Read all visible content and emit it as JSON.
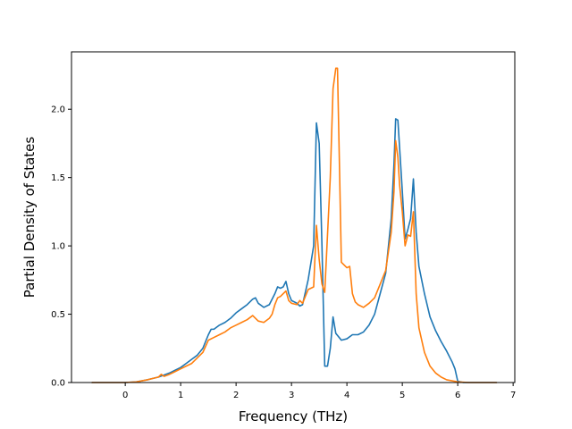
{
  "chart_data": {
    "type": "line",
    "xlabel": "Frequency (THz)",
    "ylabel": "Partial Density of States",
    "xlim": [
      -0.97,
      7.03
    ],
    "ylim": [
      0.0,
      2.42
    ],
    "x_ticks": [
      0,
      1,
      2,
      3,
      4,
      5,
      6,
      7
    ],
    "y_ticks": [
      0.0,
      0.5,
      1.0,
      1.5,
      2.0
    ],
    "grid": false,
    "legend": "none",
    "series": [
      {
        "color": "#1f77b4",
        "points": [
          [
            -0.6,
            0
          ],
          [
            0,
            0
          ],
          [
            0.2,
            0.005
          ],
          [
            0.4,
            0.02
          ],
          [
            0.5,
            0.03
          ],
          [
            0.6,
            0.04
          ],
          [
            0.7,
            0.055
          ],
          [
            0.8,
            0.07
          ],
          [
            0.9,
            0.09
          ],
          [
            1.0,
            0.11
          ],
          [
            1.1,
            0.14
          ],
          [
            1.2,
            0.17
          ],
          [
            1.3,
            0.2
          ],
          [
            1.4,
            0.25
          ],
          [
            1.5,
            0.35
          ],
          [
            1.55,
            0.39
          ],
          [
            1.6,
            0.39
          ],
          [
            1.7,
            0.42
          ],
          [
            1.8,
            0.44
          ],
          [
            1.9,
            0.47
          ],
          [
            2.0,
            0.51
          ],
          [
            2.1,
            0.54
          ],
          [
            2.2,
            0.57
          ],
          [
            2.3,
            0.61
          ],
          [
            2.35,
            0.62
          ],
          [
            2.4,
            0.58
          ],
          [
            2.5,
            0.55
          ],
          [
            2.6,
            0.57
          ],
          [
            2.7,
            0.65
          ],
          [
            2.75,
            0.7
          ],
          [
            2.8,
            0.69
          ],
          [
            2.85,
            0.7
          ],
          [
            2.9,
            0.74
          ],
          [
            2.95,
            0.65
          ],
          [
            3.0,
            0.6
          ],
          [
            3.1,
            0.58
          ],
          [
            3.15,
            0.56
          ],
          [
            3.2,
            0.57
          ],
          [
            3.3,
            0.75
          ],
          [
            3.4,
            1.0
          ],
          [
            3.45,
            1.9
          ],
          [
            3.5,
            1.75
          ],
          [
            3.55,
            1.0
          ],
          [
            3.6,
            0.12
          ],
          [
            3.65,
            0.12
          ],
          [
            3.7,
            0.25
          ],
          [
            3.75,
            0.48
          ],
          [
            3.8,
            0.36
          ],
          [
            3.9,
            0.31
          ],
          [
            4.0,
            0.32
          ],
          [
            4.1,
            0.35
          ],
          [
            4.2,
            0.35
          ],
          [
            4.3,
            0.37
          ],
          [
            4.4,
            0.42
          ],
          [
            4.5,
            0.5
          ],
          [
            4.6,
            0.65
          ],
          [
            4.7,
            0.8
          ],
          [
            4.8,
            1.2
          ],
          [
            4.85,
            1.6
          ],
          [
            4.88,
            1.93
          ],
          [
            4.92,
            1.92
          ],
          [
            5.0,
            1.4
          ],
          [
            5.05,
            1.05
          ],
          [
            5.1,
            1.12
          ],
          [
            5.15,
            1.2
          ],
          [
            5.2,
            1.49
          ],
          [
            5.25,
            1.1
          ],
          [
            5.3,
            0.85
          ],
          [
            5.4,
            0.65
          ],
          [
            5.5,
            0.48
          ],
          [
            5.6,
            0.38
          ],
          [
            5.7,
            0.3
          ],
          [
            5.8,
            0.23
          ],
          [
            5.9,
            0.15
          ],
          [
            5.95,
            0.1
          ],
          [
            6.0,
            0.01
          ],
          [
            6.1,
            0
          ],
          [
            6.7,
            0
          ]
        ]
      },
      {
        "color": "#ff7f0e",
        "points": [
          [
            -0.6,
            0
          ],
          [
            0,
            0
          ],
          [
            0.2,
            0.005
          ],
          [
            0.4,
            0.02
          ],
          [
            0.5,
            0.03
          ],
          [
            0.6,
            0.04
          ],
          [
            0.65,
            0.06
          ],
          [
            0.7,
            0.045
          ],
          [
            0.8,
            0.06
          ],
          [
            0.9,
            0.08
          ],
          [
            1.0,
            0.1
          ],
          [
            1.1,
            0.12
          ],
          [
            1.2,
            0.14
          ],
          [
            1.3,
            0.18
          ],
          [
            1.4,
            0.22
          ],
          [
            1.5,
            0.31
          ],
          [
            1.6,
            0.33
          ],
          [
            1.7,
            0.35
          ],
          [
            1.8,
            0.37
          ],
          [
            1.9,
            0.4
          ],
          [
            2.0,
            0.42
          ],
          [
            2.1,
            0.44
          ],
          [
            2.2,
            0.46
          ],
          [
            2.3,
            0.49
          ],
          [
            2.4,
            0.45
          ],
          [
            2.5,
            0.44
          ],
          [
            2.6,
            0.47
          ],
          [
            2.65,
            0.5
          ],
          [
            2.7,
            0.57
          ],
          [
            2.75,
            0.62
          ],
          [
            2.8,
            0.63
          ],
          [
            2.9,
            0.67
          ],
          [
            2.95,
            0.6
          ],
          [
            3.0,
            0.58
          ],
          [
            3.1,
            0.57
          ],
          [
            3.15,
            0.6
          ],
          [
            3.2,
            0.58
          ],
          [
            3.3,
            0.68
          ],
          [
            3.4,
            0.7
          ],
          [
            3.45,
            1.15
          ],
          [
            3.5,
            0.9
          ],
          [
            3.55,
            0.72
          ],
          [
            3.6,
            0.66
          ],
          [
            3.7,
            1.5
          ],
          [
            3.75,
            2.15
          ],
          [
            3.8,
            2.3
          ],
          [
            3.83,
            2.3
          ],
          [
            3.87,
            1.5
          ],
          [
            3.9,
            0.88
          ],
          [
            4.0,
            0.84
          ],
          [
            4.05,
            0.85
          ],
          [
            4.1,
            0.65
          ],
          [
            4.15,
            0.59
          ],
          [
            4.2,
            0.57
          ],
          [
            4.3,
            0.55
          ],
          [
            4.4,
            0.58
          ],
          [
            4.5,
            0.62
          ],
          [
            4.6,
            0.72
          ],
          [
            4.7,
            0.82
          ],
          [
            4.8,
            1.1
          ],
          [
            4.85,
            1.4
          ],
          [
            4.88,
            1.77
          ],
          [
            4.92,
            1.65
          ],
          [
            4.95,
            1.45
          ],
          [
            5.0,
            1.25
          ],
          [
            5.05,
            1.0
          ],
          [
            5.1,
            1.08
          ],
          [
            5.15,
            1.07
          ],
          [
            5.2,
            1.25
          ],
          [
            5.25,
            0.65
          ],
          [
            5.3,
            0.4
          ],
          [
            5.4,
            0.22
          ],
          [
            5.5,
            0.12
          ],
          [
            5.6,
            0.07
          ],
          [
            5.7,
            0.04
          ],
          [
            5.8,
            0.02
          ],
          [
            6.0,
            0.005
          ],
          [
            6.2,
            0
          ],
          [
            6.7,
            0
          ]
        ]
      }
    ]
  }
}
